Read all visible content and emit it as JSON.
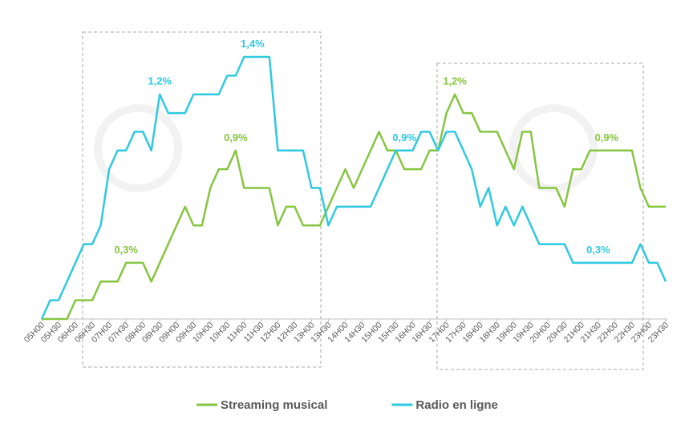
{
  "chart_data": {
    "type": "line",
    "categories": [
      "05H00",
      null,
      "05H30",
      null,
      "06H00",
      null,
      "06H30",
      null,
      "07H00",
      null,
      "07H30",
      null,
      "08H00",
      null,
      "08H30",
      null,
      "09H00",
      null,
      "09H30",
      null,
      "10H00",
      null,
      "10H30",
      null,
      "11H00",
      null,
      "11H30",
      null,
      "12H00",
      null,
      "12H30",
      null,
      "13H00",
      null,
      "13H30",
      null,
      "14H00",
      null,
      "14H30",
      null,
      "15H00",
      null,
      "15H30",
      null,
      "16H00",
      null,
      "16H30",
      null,
      "17H00",
      null,
      "17H30",
      null,
      "18H00",
      null,
      "18H30",
      null,
      "19H00",
      null,
      "19H30",
      null,
      "20H00",
      null,
      "20H30",
      null,
      "21H00",
      null,
      "21H30",
      null,
      "22H00",
      null,
      "22H30",
      null,
      "23H00",
      null,
      "23H30"
    ],
    "ylim": [
      0,
      1.4
    ],
    "legend": "bottom",
    "series": [
      {
        "name": "Streaming musical",
        "color": "#86c540",
        "values": [
          0,
          0,
          0,
          0,
          0.1,
          0.1,
          0.1,
          0.2,
          0.2,
          0.2,
          0.3,
          0.3,
          0.3,
          0.2,
          0.3,
          0.4,
          0.5,
          0.6,
          0.5,
          0.5,
          0.7,
          0.8,
          0.8,
          0.9,
          0.7,
          0.7,
          0.7,
          0.7,
          0.5,
          0.6,
          0.6,
          0.5,
          0.5,
          0.5,
          0.6,
          0.7,
          0.8,
          0.7,
          0.8,
          0.9,
          1.0,
          0.9,
          0.9,
          0.8,
          0.8,
          0.8,
          0.9,
          0.9,
          1.1,
          1.2,
          1.1,
          1.1,
          1.0,
          1.0,
          1.0,
          0.9,
          0.8,
          1.0,
          1.0,
          0.7,
          0.7,
          0.7,
          0.6,
          0.8,
          0.8,
          0.9,
          0.9,
          0.9,
          0.9,
          0.9,
          0.9,
          0.7,
          0.6,
          0.6,
          0.6
        ],
        "value_labels": [
          null,
          null,
          null,
          null,
          null,
          null,
          null,
          null,
          null,
          null,
          "0,3%",
          null,
          null,
          null,
          null,
          null,
          null,
          null,
          null,
          null,
          null,
          null,
          null,
          "0,9%",
          null,
          null,
          null,
          null,
          null,
          null,
          null,
          null,
          null,
          null,
          null,
          null,
          null,
          null,
          null,
          null,
          null,
          null,
          null,
          null,
          null,
          null,
          null,
          null,
          null,
          "1,2%",
          null,
          null,
          null,
          null,
          null,
          null,
          null,
          null,
          null,
          null,
          null,
          null,
          null,
          null,
          null,
          null,
          null,
          "0,9%",
          null,
          null,
          null,
          null,
          null,
          null,
          null
        ]
      },
      {
        "name": "Radio en ligne",
        "color": "#2ec9e0",
        "values": [
          0,
          0.1,
          0.1,
          0.2,
          0.3,
          0.4,
          0.4,
          0.5,
          0.8,
          0.9,
          0.9,
          1.0,
          1.0,
          0.9,
          1.2,
          1.1,
          1.1,
          1.1,
          1.2,
          1.2,
          1.2,
          1.2,
          1.3,
          1.3,
          1.4,
          1.4,
          1.4,
          1.4,
          0.9,
          0.9,
          0.9,
          0.9,
          0.7,
          0.7,
          0.5,
          0.6,
          0.6,
          0.6,
          0.6,
          0.6,
          0.7,
          0.8,
          0.9,
          0.9,
          0.9,
          1.0,
          1.0,
          0.9,
          1.0,
          1.0,
          0.9,
          0.8,
          0.6,
          0.7,
          0.5,
          0.6,
          0.5,
          0.6,
          0.5,
          0.4,
          0.4,
          0.4,
          0.4,
          0.3,
          0.3,
          0.3,
          0.3,
          0.3,
          0.3,
          0.3,
          0.3,
          0.4,
          0.3,
          0.3,
          0.2
        ],
        "value_labels": [
          null,
          null,
          null,
          null,
          null,
          null,
          null,
          null,
          null,
          null,
          null,
          null,
          null,
          null,
          "1,2%",
          null,
          null,
          null,
          null,
          null,
          null,
          null,
          null,
          null,
          null,
          "1,4%",
          null,
          null,
          null,
          null,
          null,
          null,
          null,
          null,
          null,
          null,
          null,
          null,
          null,
          null,
          null,
          null,
          null,
          "0,9%",
          null,
          null,
          null,
          null,
          null,
          null,
          null,
          null,
          null,
          null,
          null,
          null,
          null,
          null,
          null,
          null,
          null,
          null,
          null,
          null,
          null,
          null,
          "0,3%",
          null,
          null,
          null,
          null,
          null,
          null,
          null,
          null
        ]
      }
    ]
  }
}
